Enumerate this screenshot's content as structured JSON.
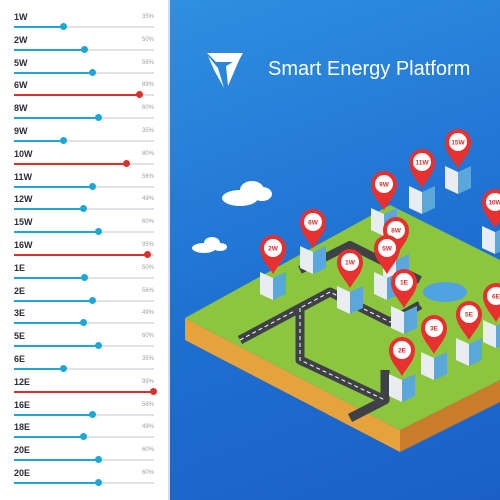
{
  "sidebar": {
    "items": [
      {
        "label": "1W",
        "percent": "35%",
        "value": 0.35,
        "high": false
      },
      {
        "label": "2W",
        "percent": "50%",
        "value": 0.5,
        "high": false
      },
      {
        "label": "5W",
        "percent": "56%",
        "value": 0.56,
        "high": false
      },
      {
        "label": "6W",
        "percent": "89%",
        "value": 0.89,
        "high": true
      },
      {
        "label": "8W",
        "percent": "60%",
        "value": 0.6,
        "high": false
      },
      {
        "label": "9W",
        "percent": "35%",
        "value": 0.35,
        "high": false
      },
      {
        "label": "10W",
        "percent": "80%",
        "value": 0.8,
        "high": true
      },
      {
        "label": "11W",
        "percent": "56%",
        "value": 0.56,
        "high": false
      },
      {
        "label": "12W",
        "percent": "49%",
        "value": 0.49,
        "high": false
      },
      {
        "label": "15W",
        "percent": "60%",
        "value": 0.6,
        "high": false
      },
      {
        "label": "16W",
        "percent": "95%",
        "value": 0.95,
        "high": true
      },
      {
        "label": "1E",
        "percent": "50%",
        "value": 0.5,
        "high": false
      },
      {
        "label": "2E",
        "percent": "56%",
        "value": 0.56,
        "high": false
      },
      {
        "label": "3E",
        "percent": "49%",
        "value": 0.49,
        "high": false
      },
      {
        "label": "5E",
        "percent": "60%",
        "value": 0.6,
        "high": false
      },
      {
        "label": "6E",
        "percent": "35%",
        "value": 0.35,
        "high": false
      },
      {
        "label": "12E",
        "percent": "99%",
        "value": 0.99,
        "high": true
      },
      {
        "label": "16E",
        "percent": "56%",
        "value": 0.56,
        "high": false
      },
      {
        "label": "18E",
        "percent": "49%",
        "value": 0.49,
        "high": false
      },
      {
        "label": "20E",
        "percent": "60%",
        "value": 0.6,
        "high": false
      },
      {
        "label": "20E",
        "percent": "60%",
        "value": 0.6,
        "high": false
      }
    ]
  },
  "header": {
    "title": "Smart Energy Platform",
    "logo_icon": "shield-logo-icon"
  },
  "map": {
    "pins": [
      "15W",
      "11W",
      "9W",
      "10W",
      "6W",
      "8W",
      "2W",
      "1W",
      "5W",
      "1E",
      "3E",
      "2E",
      "5E",
      "6E"
    ]
  },
  "colors": {
    "accent": "#1ea6d6",
    "alert": "#d9302c",
    "background": "#1e6fd1",
    "ground": "#8cc63f"
  }
}
